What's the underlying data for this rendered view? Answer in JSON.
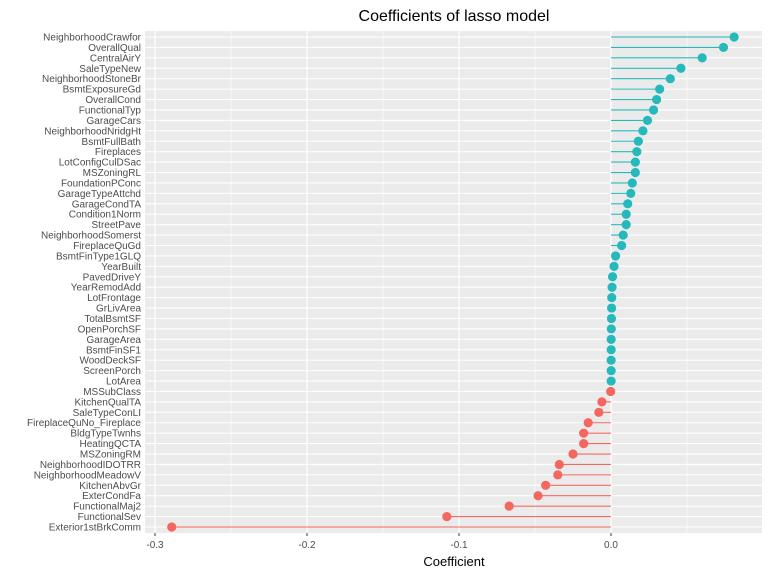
{
  "chart_data": {
    "type": "lollipop",
    "title": "Coefficients of lasso model",
    "xlabel": "Coefficient",
    "ylabel": "",
    "xlim": [
      -0.3,
      0.1
    ],
    "x_ticks": [
      -0.3,
      -0.2,
      -0.1,
      0.0
    ],
    "x_tick_labels": [
      "-0.3",
      "-0.2",
      "-0.1",
      "0.0"
    ],
    "grid": true,
    "colors": {
      "positive": "#26b9bc",
      "negative": "#f4675f",
      "panel": "#ebebeb",
      "grid": "#ffffff"
    },
    "categories": [
      "NeighborhoodCrawfor",
      "OverallQual",
      "CentralAirY",
      "SaleTypeNew",
      "NeighborhoodStoneBr",
      "BsmtExposureGd",
      "OverallCond",
      "FunctionalTyp",
      "GarageCars",
      "NeighborhoodNridgHt",
      "BsmtFullBath",
      "Fireplaces",
      "LotConfigCulDSac",
      "MSZoningRL",
      "FoundationPConc",
      "GarageTypeAttchd",
      "GarageCondTA",
      "Condition1Norm",
      "StreetPave",
      "NeighborhoodSomerst",
      "FireplaceQuGd",
      "BsmtFinType1GLQ",
      "YearBuilt",
      "PavedDriveY",
      "YearRemodAdd",
      "LotFrontage",
      "GrLivArea",
      "TotalBsmtSF",
      "OpenPorchSF",
      "GarageArea",
      "BsmtFinSF1",
      "WoodDeckSF",
      "ScreenPorch",
      "LotArea",
      "MSSubClass",
      "KitchenQualTA",
      "SaleTypeConLI",
      "FireplaceQuNo_Fireplace",
      "BldgTypeTwnhs",
      "HeatingQCTA",
      "MSZoningRM",
      "NeighborhoodIDOTRR",
      "NeighborhoodMeadowV",
      "KitchenAbvGr",
      "ExterCondFa",
      "FunctionalMaj2",
      "FunctionalSev",
      "Exterior1stBrkComm"
    ],
    "values": [
      0.081,
      0.074,
      0.06,
      0.046,
      0.039,
      0.032,
      0.03,
      0.028,
      0.024,
      0.021,
      0.018,
      0.017,
      0.016,
      0.016,
      0.014,
      0.013,
      0.011,
      0.01,
      0.01,
      0.008,
      0.007,
      0.003,
      0.002,
      0.001,
      0.0007,
      0.0005,
      0.0004,
      0.0003,
      0.0002,
      0.0001,
      0.0001,
      0.0001,
      0.0001,
      0.0001,
      -0.0002,
      -0.006,
      -0.008,
      -0.015,
      -0.018,
      -0.018,
      -0.025,
      -0.034,
      -0.035,
      -0.043,
      -0.048,
      -0.067,
      -0.108,
      -0.289
    ]
  }
}
